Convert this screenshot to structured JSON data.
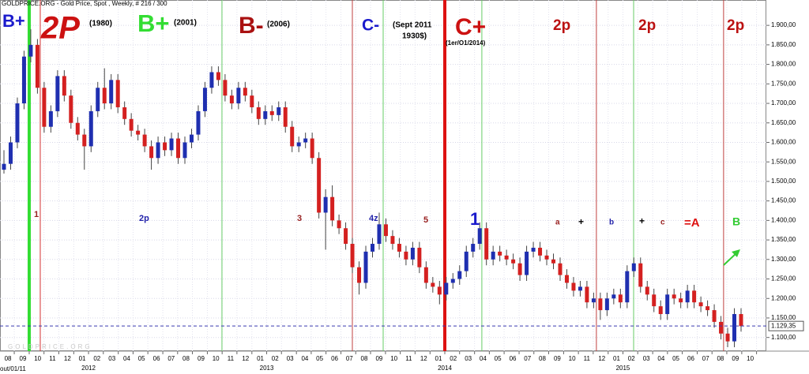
{
  "chart_data": {
    "type": "candlestick",
    "title": "GOLDPRICE.ORG - Gold Price, Spot , Weekly, # 216 / 300",
    "start_label": "out/01/11",
    "watermark": "GOLDPRICE.ORG",
    "up_color": "#1f2fb0",
    "down_color": "#d42020",
    "grid": true,
    "xlim": [
      2011.503,
      2015.805
    ],
    "ylim": [
      1065,
      1965
    ],
    "yticks": [
      {
        "value": 1100,
        "label": "1.100,00"
      },
      {
        "value": 1150,
        "label": "1.150,00"
      },
      {
        "value": 1200,
        "label": "1.200,00"
      },
      {
        "value": 1250,
        "label": "1.250,00"
      },
      {
        "value": 1300,
        "label": "1.300,00"
      },
      {
        "value": 1350,
        "label": "1.350,00"
      },
      {
        "value": 1400,
        "label": "1.400,00"
      },
      {
        "value": 1450,
        "label": "1.450,00"
      },
      {
        "value": 1500,
        "label": "1.500,00"
      },
      {
        "value": 1550,
        "label": "1.550,00"
      },
      {
        "value": 1600,
        "label": "1.600,00"
      },
      {
        "value": 1650,
        "label": "1.650,00"
      },
      {
        "value": 1700,
        "label": "1.700,00"
      },
      {
        "value": 1750,
        "label": "1.750,00"
      },
      {
        "value": 1800,
        "label": "1.800,00"
      },
      {
        "value": 1850,
        "label": "1.850,00"
      },
      {
        "value": 1900,
        "label": "1.900,00"
      }
    ],
    "xticks": [
      {
        "value": 2011.583,
        "label": "08"
      },
      {
        "value": 2011.667,
        "label": "09"
      },
      {
        "value": 2011.75,
        "label": "10"
      },
      {
        "value": 2011.833,
        "label": "11"
      },
      {
        "value": 2011.917,
        "label": "12"
      },
      {
        "value": 2012.0,
        "label": "01"
      },
      {
        "value": 2012.083,
        "label": "02"
      },
      {
        "value": 2012.167,
        "label": "03"
      },
      {
        "value": 2012.25,
        "label": "04"
      },
      {
        "value": 2012.333,
        "label": "05"
      },
      {
        "value": 2012.417,
        "label": "06"
      },
      {
        "value": 2012.5,
        "label": "07"
      },
      {
        "value": 2012.583,
        "label": "08"
      },
      {
        "value": 2012.667,
        "label": "09"
      },
      {
        "value": 2012.75,
        "label": "10"
      },
      {
        "value": 2012.833,
        "label": "11"
      },
      {
        "value": 2012.917,
        "label": "12"
      },
      {
        "value": 2013.0,
        "label": "01"
      },
      {
        "value": 2013.083,
        "label": "02"
      },
      {
        "value": 2013.167,
        "label": "03"
      },
      {
        "value": 2013.25,
        "label": "04"
      },
      {
        "value": 2013.333,
        "label": "05"
      },
      {
        "value": 2013.417,
        "label": "06"
      },
      {
        "value": 2013.5,
        "label": "07"
      },
      {
        "value": 2013.583,
        "label": "08"
      },
      {
        "value": 2013.667,
        "label": "09"
      },
      {
        "value": 2013.75,
        "label": "10"
      },
      {
        "value": 2013.833,
        "label": "11"
      },
      {
        "value": 2013.917,
        "label": "12"
      },
      {
        "value": 2014.0,
        "label": "01"
      },
      {
        "value": 2014.083,
        "label": "02"
      },
      {
        "value": 2014.167,
        "label": "03"
      },
      {
        "value": 2014.25,
        "label": "04"
      },
      {
        "value": 2014.333,
        "label": "05"
      },
      {
        "value": 2014.417,
        "label": "06"
      },
      {
        "value": 2014.5,
        "label": "07"
      },
      {
        "value": 2014.583,
        "label": "08"
      },
      {
        "value": 2014.667,
        "label": "09"
      },
      {
        "value": 2014.75,
        "label": "10"
      },
      {
        "value": 2014.833,
        "label": "11"
      },
      {
        "value": 2014.917,
        "label": "12"
      },
      {
        "value": 2015.0,
        "label": "01"
      },
      {
        "value": 2015.083,
        "label": "02"
      },
      {
        "value": 2015.167,
        "label": "03"
      },
      {
        "value": 2015.25,
        "label": "04"
      },
      {
        "value": 2015.333,
        "label": "05"
      },
      {
        "value": 2015.417,
        "label": "06"
      },
      {
        "value": 2015.5,
        "label": "07"
      },
      {
        "value": 2015.583,
        "label": "08"
      },
      {
        "value": 2015.667,
        "label": "09"
      },
      {
        "value": 2015.75,
        "label": "10"
      }
    ],
    "year_ticks": [
      2012,
      2013,
      2014,
      2015
    ],
    "price_line": {
      "value": 1129.35,
      "label": "1.129,35",
      "color": "#3b3bb0"
    },
    "vlines": [
      {
        "x": 2011.667,
        "color": "#33dd33",
        "width": 4
      },
      {
        "x": 2011.729,
        "color": "#d43030",
        "width": 1
      },
      {
        "x": 2012.749,
        "color": "#66cc66",
        "width": 1
      },
      {
        "x": 2013.481,
        "color": "#c04040",
        "width": 1
      },
      {
        "x": 2013.654,
        "color": "#66cc66",
        "width": 1
      },
      {
        "x": 2014.0,
        "color": "#dd1111",
        "width": 4
      },
      {
        "x": 2014.208,
        "color": "#66cc66",
        "width": 1
      },
      {
        "x": 2014.851,
        "color": "#c04040",
        "width": 1
      },
      {
        "x": 2015.06,
        "color": "#66cc66",
        "width": 1
      },
      {
        "x": 2015.565,
        "color": "#c04040",
        "width": 1
      }
    ],
    "annotations": [
      {
        "text": "B+",
        "color": "#1a1acc"
      },
      {
        "text": "2P",
        "color": "#cc1111"
      },
      {
        "text": "(1980)",
        "color": "#000000"
      },
      {
        "text": "B+",
        "color": "#33dd33"
      },
      {
        "text": "(2001)",
        "color": "#000000"
      },
      {
        "text": "B-",
        "color": "#aa1111"
      },
      {
        "text": "(2006)",
        "color": "#000000"
      },
      {
        "text": "C-",
        "color": "#1a1acc"
      },
      {
        "text": "(Sept 2011",
        "color": "#000000"
      },
      {
        "text": "1930$)",
        "color": "#000000"
      },
      {
        "text": "C+",
        "color": "#cc1111"
      },
      {
        "text": "(1er/O1/2014)",
        "color": "#000000"
      },
      {
        "text": "2p",
        "color": "#bb1111"
      },
      {
        "text": "2p",
        "color": "#bb1111"
      },
      {
        "text": "2p",
        "color": "#bb1111"
      },
      {
        "text": "1",
        "color": "#992222"
      },
      {
        "text": "2p",
        "color": "#2222aa"
      },
      {
        "text": "3",
        "color": "#992222"
      },
      {
        "text": "4z",
        "color": "#2222aa"
      },
      {
        "text": "5",
        "color": "#992222"
      },
      {
        "text": "1",
        "color": "#1a1acc"
      },
      {
        "text": "a",
        "color": "#992222"
      },
      {
        "text": "+",
        "color": "#000000"
      },
      {
        "text": "b",
        "color": "#2222aa"
      },
      {
        "text": "+",
        "color": "#000000"
      },
      {
        "text": "c",
        "color": "#992222"
      },
      {
        "text": "=A",
        "color": "#dd1111"
      },
      {
        "text": "B",
        "color": "#33cc33"
      }
    ],
    "candles": [
      [
        1530,
        1580,
        1520,
        1545
      ],
      [
        1545,
        1615,
        1530,
        1600
      ],
      [
        1600,
        1715,
        1585,
        1700
      ],
      [
        1700,
        1835,
        1685,
        1820
      ],
      [
        1820,
        1890,
        1805,
        1850
      ],
      [
        1850,
        1865,
        1725,
        1740
      ],
      [
        1740,
        1755,
        1625,
        1640
      ],
      [
        1640,
        1695,
        1625,
        1680
      ],
      [
        1680,
        1785,
        1665,
        1770
      ],
      [
        1770,
        1785,
        1705,
        1720
      ],
      [
        1720,
        1735,
        1635,
        1650
      ],
      [
        1650,
        1665,
        1605,
        1620
      ],
      [
        1620,
        1635,
        1530,
        1590
      ],
      [
        1590,
        1695,
        1575,
        1680
      ],
      [
        1680,
        1755,
        1665,
        1740
      ],
      [
        1740,
        1790,
        1685,
        1700
      ],
      [
        1700,
        1775,
        1685,
        1760
      ],
      [
        1760,
        1775,
        1675,
        1690
      ],
      [
        1690,
        1705,
        1645,
        1660
      ],
      [
        1660,
        1675,
        1615,
        1630
      ],
      [
        1630,
        1645,
        1605,
        1620
      ],
      [
        1620,
        1635,
        1575,
        1590
      ],
      [
        1590,
        1605,
        1530,
        1560
      ],
      [
        1560,
        1615,
        1545,
        1600
      ],
      [
        1600,
        1615,
        1565,
        1580
      ],
      [
        1580,
        1625,
        1565,
        1610
      ],
      [
        1610,
        1625,
        1545,
        1560
      ],
      [
        1560,
        1615,
        1545,
        1600
      ],
      [
        1600,
        1635,
        1585,
        1620
      ],
      [
        1620,
        1695,
        1605,
        1680
      ],
      [
        1680,
        1755,
        1665,
        1740
      ],
      [
        1740,
        1795,
        1725,
        1780
      ],
      [
        1780,
        1795,
        1745,
        1760
      ],
      [
        1760,
        1775,
        1705,
        1720
      ],
      [
        1720,
        1735,
        1685,
        1700
      ],
      [
        1700,
        1755,
        1685,
        1740
      ],
      [
        1740,
        1755,
        1705,
        1720
      ],
      [
        1720,
        1735,
        1675,
        1690
      ],
      [
        1690,
        1705,
        1645,
        1660
      ],
      [
        1660,
        1695,
        1645,
        1680
      ],
      [
        1680,
        1695,
        1655,
        1670
      ],
      [
        1670,
        1705,
        1655,
        1690
      ],
      [
        1690,
        1705,
        1625,
        1640
      ],
      [
        1640,
        1655,
        1575,
        1590
      ],
      [
        1590,
        1615,
        1575,
        1600
      ],
      [
        1600,
        1625,
        1585,
        1610
      ],
      [
        1610,
        1625,
        1545,
        1560
      ],
      [
        1560,
        1575,
        1405,
        1420
      ],
      [
        1420,
        1480,
        1325,
        1460
      ],
      [
        1460,
        1490,
        1385,
        1400
      ],
      [
        1400,
        1415,
        1365,
        1380
      ],
      [
        1380,
        1395,
        1325,
        1340
      ],
      [
        1340,
        1355,
        1265,
        1280
      ],
      [
        1280,
        1295,
        1210,
        1240
      ],
      [
        1240,
        1335,
        1225,
        1320
      ],
      [
        1320,
        1355,
        1305,
        1340
      ],
      [
        1340,
        1420,
        1325,
        1390
      ],
      [
        1390,
        1405,
        1345,
        1360
      ],
      [
        1360,
        1375,
        1325,
        1340
      ],
      [
        1340,
        1355,
        1305,
        1320
      ],
      [
        1320,
        1335,
        1285,
        1300
      ],
      [
        1300,
        1345,
        1285,
        1330
      ],
      [
        1330,
        1345,
        1265,
        1280
      ],
      [
        1280,
        1295,
        1225,
        1240
      ],
      [
        1240,
        1255,
        1215,
        1230
      ],
      [
        1230,
        1245,
        1185,
        1210
      ],
      [
        1210,
        1255,
        1195,
        1240
      ],
      [
        1240,
        1265,
        1225,
        1250
      ],
      [
        1250,
        1285,
        1235,
        1270
      ],
      [
        1270,
        1335,
        1255,
        1320
      ],
      [
        1320,
        1355,
        1305,
        1340
      ],
      [
        1340,
        1395,
        1325,
        1380
      ],
      [
        1380,
        1395,
        1285,
        1300
      ],
      [
        1300,
        1335,
        1285,
        1320
      ],
      [
        1320,
        1335,
        1295,
        1310
      ],
      [
        1310,
        1325,
        1285,
        1300
      ],
      [
        1300,
        1315,
        1275,
        1290
      ],
      [
        1290,
        1305,
        1245,
        1260
      ],
      [
        1260,
        1335,
        1245,
        1320
      ],
      [
        1320,
        1345,
        1305,
        1330
      ],
      [
        1330,
        1345,
        1295,
        1310
      ],
      [
        1310,
        1325,
        1285,
        1300
      ],
      [
        1300,
        1315,
        1275,
        1290
      ],
      [
        1290,
        1305,
        1245,
        1260
      ],
      [
        1260,
        1275,
        1225,
        1240
      ],
      [
        1240,
        1255,
        1205,
        1220
      ],
      [
        1220,
        1245,
        1205,
        1230
      ],
      [
        1230,
        1245,
        1175,
        1190
      ],
      [
        1190,
        1215,
        1175,
        1200
      ],
      [
        1200,
        1215,
        1145,
        1170
      ],
      [
        1170,
        1215,
        1155,
        1200
      ],
      [
        1200,
        1225,
        1185,
        1210
      ],
      [
        1210,
        1225,
        1175,
        1190
      ],
      [
        1190,
        1285,
        1175,
        1270
      ],
      [
        1270,
        1305,
        1255,
        1290
      ],
      [
        1290,
        1305,
        1215,
        1230
      ],
      [
        1230,
        1245,
        1195,
        1210
      ],
      [
        1210,
        1225,
        1165,
        1180
      ],
      [
        1180,
        1195,
        1145,
        1160
      ],
      [
        1160,
        1225,
        1145,
        1210
      ],
      [
        1210,
        1225,
        1185,
        1200
      ],
      [
        1200,
        1215,
        1175,
        1190
      ],
      [
        1190,
        1235,
        1175,
        1220
      ],
      [
        1220,
        1235,
        1175,
        1190
      ],
      [
        1190,
        1205,
        1165,
        1180
      ],
      [
        1180,
        1195,
        1155,
        1170
      ],
      [
        1170,
        1185,
        1125,
        1140
      ],
      [
        1140,
        1155,
        1095,
        1110
      ],
      [
        1110,
        1125,
        1075,
        1090
      ],
      [
        1090,
        1175,
        1075,
        1160
      ],
      [
        1160,
        1175,
        1115,
        1129
      ]
    ]
  }
}
